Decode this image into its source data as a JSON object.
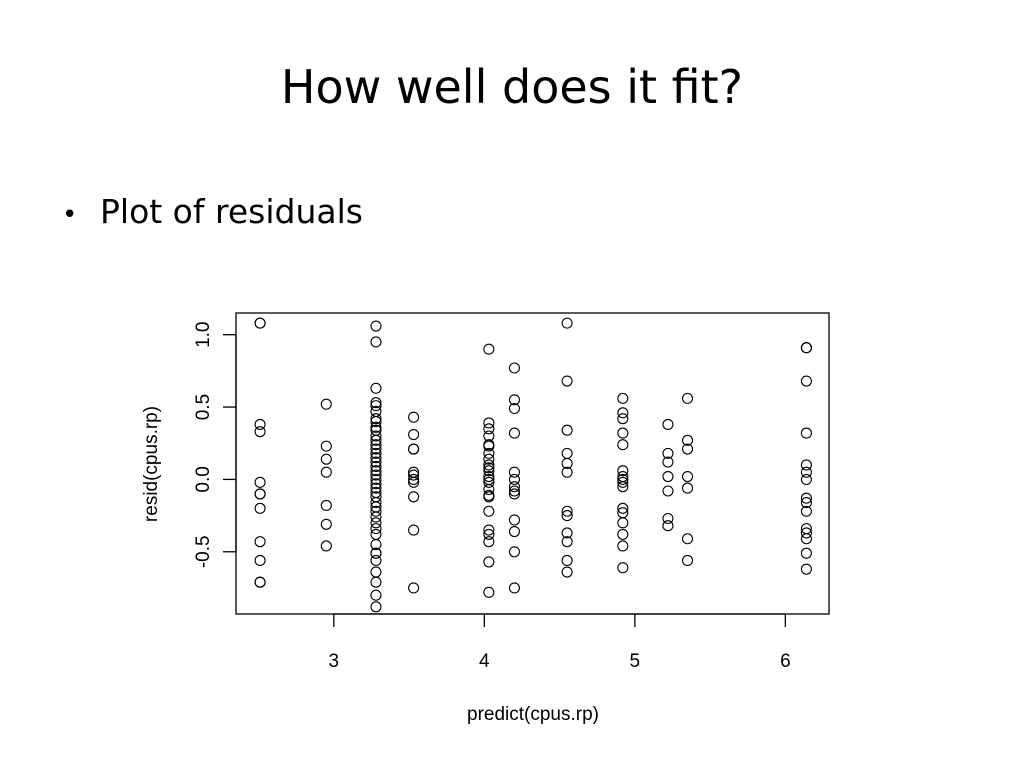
{
  "slide": {
    "title": "How well does it fit?",
    "bullets": [
      "Plot of residuals"
    ]
  },
  "chart_data": {
    "type": "scatter",
    "xlabel": "predict(cpus.rp)",
    "ylabel": "resid(cpus.rp)",
    "xlim": [
      2.35,
      6.29
    ],
    "ylim": [
      -0.93,
      1.15
    ],
    "x_ticks": [
      3,
      4,
      5,
      6
    ],
    "y_ticks": [
      -0.5,
      0.0,
      0.5,
      1.0
    ],
    "x_tick_labels": [
      "3",
      "4",
      "5",
      "6"
    ],
    "y_tick_labels": [
      "-0.5",
      "0.0",
      "0.5",
      "1.0"
    ],
    "grid": false,
    "marker": "open-circle",
    "points": [
      [
        2.51,
        1.08
      ],
      [
        2.51,
        1.08
      ],
      [
        2.51,
        0.38
      ],
      [
        2.51,
        0.33
      ],
      [
        2.51,
        -0.02
      ],
      [
        2.51,
        -0.1
      ],
      [
        2.51,
        -0.1
      ],
      [
        2.51,
        -0.2
      ],
      [
        2.51,
        -0.43
      ],
      [
        2.51,
        -0.56
      ],
      [
        2.51,
        -0.71
      ],
      [
        2.51,
        -0.71
      ],
      [
        2.95,
        0.52
      ],
      [
        2.95,
        0.23
      ],
      [
        2.95,
        0.14
      ],
      [
        2.95,
        0.05
      ],
      [
        2.95,
        -0.18
      ],
      [
        2.95,
        -0.31
      ],
      [
        2.95,
        -0.46
      ],
      [
        3.28,
        1.06
      ],
      [
        3.28,
        0.95
      ],
      [
        3.28,
        0.63
      ],
      [
        3.28,
        0.53
      ],
      [
        3.28,
        0.51
      ],
      [
        3.28,
        0.47
      ],
      [
        3.28,
        0.42
      ],
      [
        3.28,
        0.4
      ],
      [
        3.28,
        0.36
      ],
      [
        3.28,
        0.34
      ],
      [
        3.28,
        0.3
      ],
      [
        3.28,
        0.27
      ],
      [
        3.28,
        0.24
      ],
      [
        3.28,
        0.21
      ],
      [
        3.28,
        0.18
      ],
      [
        3.28,
        0.15
      ],
      [
        3.28,
        0.12
      ],
      [
        3.28,
        0.09
      ],
      [
        3.28,
        0.06
      ],
      [
        3.28,
        0.03
      ],
      [
        3.28,
        0.0
      ],
      [
        3.28,
        -0.03
      ],
      [
        3.28,
        -0.06
      ],
      [
        3.28,
        -0.09
      ],
      [
        3.28,
        -0.12
      ],
      [
        3.28,
        -0.16
      ],
      [
        3.28,
        -0.19
      ],
      [
        3.28,
        -0.22
      ],
      [
        3.28,
        -0.26
      ],
      [
        3.28,
        -0.3
      ],
      [
        3.28,
        -0.34
      ],
      [
        3.28,
        -0.38
      ],
      [
        3.28,
        -0.45
      ],
      [
        3.28,
        -0.51
      ],
      [
        3.28,
        -0.51
      ],
      [
        3.28,
        -0.56
      ],
      [
        3.28,
        -0.64
      ],
      [
        3.28,
        -0.71
      ],
      [
        3.28,
        -0.8
      ],
      [
        3.28,
        -0.88
      ],
      [
        3.53,
        0.43
      ],
      [
        3.53,
        0.31
      ],
      [
        3.53,
        0.21
      ],
      [
        3.53,
        0.21
      ],
      [
        3.53,
        0.05
      ],
      [
        3.53,
        0.03
      ],
      [
        3.53,
        0.0
      ],
      [
        3.53,
        -0.02
      ],
      [
        3.53,
        -0.12
      ],
      [
        3.53,
        -0.35
      ],
      [
        3.53,
        -0.75
      ],
      [
        4.03,
        0.9
      ],
      [
        4.03,
        0.39
      ],
      [
        4.03,
        0.35
      ],
      [
        4.03,
        0.3
      ],
      [
        4.03,
        0.24
      ],
      [
        4.03,
        0.23
      ],
      [
        4.03,
        0.18
      ],
      [
        4.03,
        0.14
      ],
      [
        4.03,
        0.1
      ],
      [
        4.03,
        0.08
      ],
      [
        4.03,
        0.06
      ],
      [
        4.03,
        0.02
      ],
      [
        4.03,
        0.0
      ],
      [
        4.03,
        -0.02
      ],
      [
        4.03,
        -0.07
      ],
      [
        4.03,
        -0.11
      ],
      [
        4.03,
        -0.12
      ],
      [
        4.03,
        -0.22
      ],
      [
        4.03,
        -0.35
      ],
      [
        4.03,
        -0.38
      ],
      [
        4.03,
        -0.43
      ],
      [
        4.03,
        -0.57
      ],
      [
        4.03,
        -0.78
      ],
      [
        4.2,
        0.77
      ],
      [
        4.2,
        0.55
      ],
      [
        4.2,
        0.49
      ],
      [
        4.2,
        0.32
      ],
      [
        4.2,
        0.05
      ],
      [
        4.2,
        0.0
      ],
      [
        4.2,
        -0.05
      ],
      [
        4.2,
        -0.08
      ],
      [
        4.2,
        -0.1
      ],
      [
        4.2,
        -0.28
      ],
      [
        4.2,
        -0.36
      ],
      [
        4.2,
        -0.5
      ],
      [
        4.2,
        -0.75
      ],
      [
        4.55,
        1.08
      ],
      [
        4.55,
        0.68
      ],
      [
        4.55,
        0.34
      ],
      [
        4.55,
        0.18
      ],
      [
        4.55,
        0.11
      ],
      [
        4.55,
        0.05
      ],
      [
        4.55,
        -0.22
      ],
      [
        4.55,
        -0.25
      ],
      [
        4.55,
        -0.37
      ],
      [
        4.55,
        -0.43
      ],
      [
        4.55,
        -0.56
      ],
      [
        4.55,
        -0.64
      ],
      [
        4.92,
        0.56
      ],
      [
        4.92,
        0.46
      ],
      [
        4.92,
        0.42
      ],
      [
        4.92,
        0.32
      ],
      [
        4.92,
        0.24
      ],
      [
        4.92,
        0.06
      ],
      [
        4.92,
        0.02
      ],
      [
        4.92,
        0.0
      ],
      [
        4.92,
        -0.02
      ],
      [
        4.92,
        -0.05
      ],
      [
        4.92,
        -0.2
      ],
      [
        4.92,
        -0.23
      ],
      [
        4.92,
        -0.3
      ],
      [
        4.92,
        -0.38
      ],
      [
        4.92,
        -0.46
      ],
      [
        4.92,
        -0.61
      ],
      [
        5.22,
        0.38
      ],
      [
        5.22,
        0.18
      ],
      [
        5.22,
        0.12
      ],
      [
        5.22,
        0.02
      ],
      [
        5.22,
        -0.08
      ],
      [
        5.22,
        -0.27
      ],
      [
        5.22,
        -0.32
      ],
      [
        5.35,
        0.56
      ],
      [
        5.35,
        0.27
      ],
      [
        5.35,
        0.21
      ],
      [
        5.35,
        0.02
      ],
      [
        5.35,
        -0.06
      ],
      [
        5.35,
        -0.41
      ],
      [
        5.35,
        -0.56
      ],
      [
        6.14,
        0.91
      ],
      [
        6.14,
        0.91
      ],
      [
        6.14,
        0.68
      ],
      [
        6.14,
        0.32
      ],
      [
        6.14,
        0.1
      ],
      [
        6.14,
        0.05
      ],
      [
        6.14,
        0.0
      ],
      [
        6.14,
        -0.13
      ],
      [
        6.14,
        -0.16
      ],
      [
        6.14,
        -0.22
      ],
      [
        6.14,
        -0.34
      ],
      [
        6.14,
        -0.37
      ],
      [
        6.14,
        -0.41
      ],
      [
        6.14,
        -0.51
      ],
      [
        6.14,
        -0.62
      ]
    ]
  }
}
